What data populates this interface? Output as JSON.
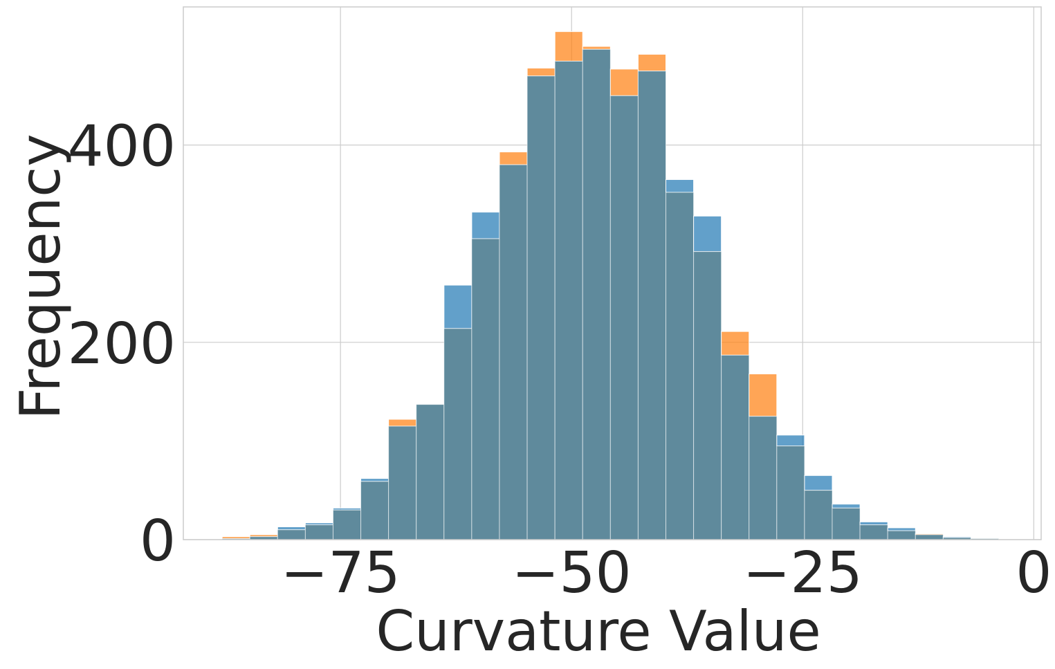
{
  "chart_data": {
    "type": "bar",
    "xlabel": "Curvature Value",
    "ylabel": "Frequency",
    "xlim": [
      -92,
      0.8
    ],
    "ylim": [
      0,
      540
    ],
    "x_ticks": [
      {
        "value": -75,
        "label": "−75"
      },
      {
        "value": -50,
        "label": "−50"
      },
      {
        "value": -25,
        "label": "−25"
      },
      {
        "value": 0,
        "label": "0"
      }
    ],
    "y_ticks": [
      {
        "value": 0,
        "label": "0"
      },
      {
        "value": 200,
        "label": "200"
      },
      {
        "value": 400,
        "label": "400"
      }
    ],
    "grid": true,
    "legend": "none",
    "bin_edges": [
      -87.8,
      -84.8,
      -81.8,
      -78.8,
      -75.8,
      -72.8,
      -69.8,
      -66.8,
      -63.8,
      -60.8,
      -57.8,
      -54.8,
      -51.8,
      -48.8,
      -45.8,
      -42.8,
      -39.8,
      -36.8,
      -33.8,
      -30.8,
      -27.8,
      -24.8,
      -21.8,
      -18.8,
      -15.8,
      -12.8,
      -9.8,
      -6.8,
      -3.8
    ],
    "series": [
      {
        "color": "#1f77b4",
        "values": [
          1,
          3,
          13,
          17,
          32,
          62,
          115,
          137,
          258,
          332,
          380,
          470,
          485,
          497,
          450,
          475,
          365,
          328,
          187,
          125,
          106,
          65,
          36,
          18,
          12,
          5,
          3,
          1
        ]
      },
      {
        "color": "#ff7f0e",
        "values": [
          3,
          5,
          10,
          15,
          30,
          59,
          122,
          137,
          214,
          305,
          393,
          478,
          515,
          500,
          477,
          492,
          352,
          292,
          211,
          168,
          95,
          50,
          32,
          15,
          9,
          6,
          2,
          1
        ]
      }
    ],
    "overlap_color": "#5f8a9c"
  }
}
